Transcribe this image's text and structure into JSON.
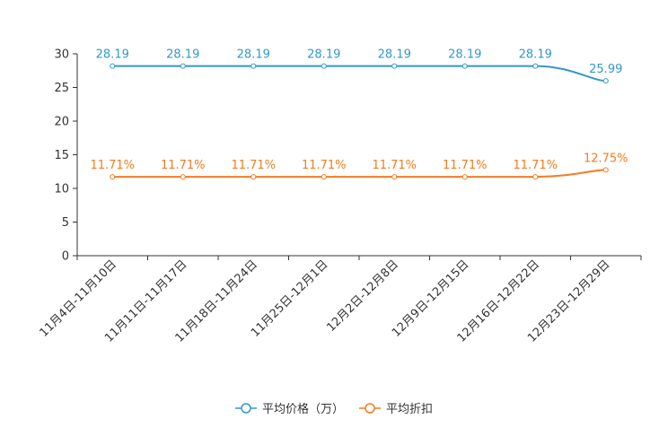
{
  "chart_data": {
    "type": "line",
    "categories": [
      "11月4日-11月10日",
      "11月11日-11月17日",
      "11月18日-11月24日",
      "11月25日-12月1日",
      "12月2日-12月8日",
      "12月9日-12月15日",
      "12月16日-12月22日",
      "12月23日-12月29日"
    ],
    "series": [
      {
        "name": "平均价格（万）",
        "color": "#3398c8",
        "values": [
          28.19,
          28.19,
          28.19,
          28.19,
          28.19,
          28.19,
          28.19,
          25.99
        ],
        "labels": [
          "28.19",
          "28.19",
          "28.19",
          "28.19",
          "28.19",
          "28.19",
          "28.19",
          "25.99"
        ]
      },
      {
        "name": "平均折扣",
        "color": "#f47b20",
        "values": [
          11.71,
          11.71,
          11.71,
          11.71,
          11.71,
          11.71,
          11.71,
          12.75
        ],
        "labels": [
          "11.71%",
          "11.71%",
          "11.71%",
          "11.71%",
          "11.71%",
          "11.71%",
          "11.71%",
          "12.75%"
        ]
      }
    ],
    "ylim": [
      0,
      30
    ],
    "yticks": [
      0,
      5,
      10,
      15,
      20,
      25,
      30
    ],
    "legend": "bottom-center",
    "grid": false
  }
}
